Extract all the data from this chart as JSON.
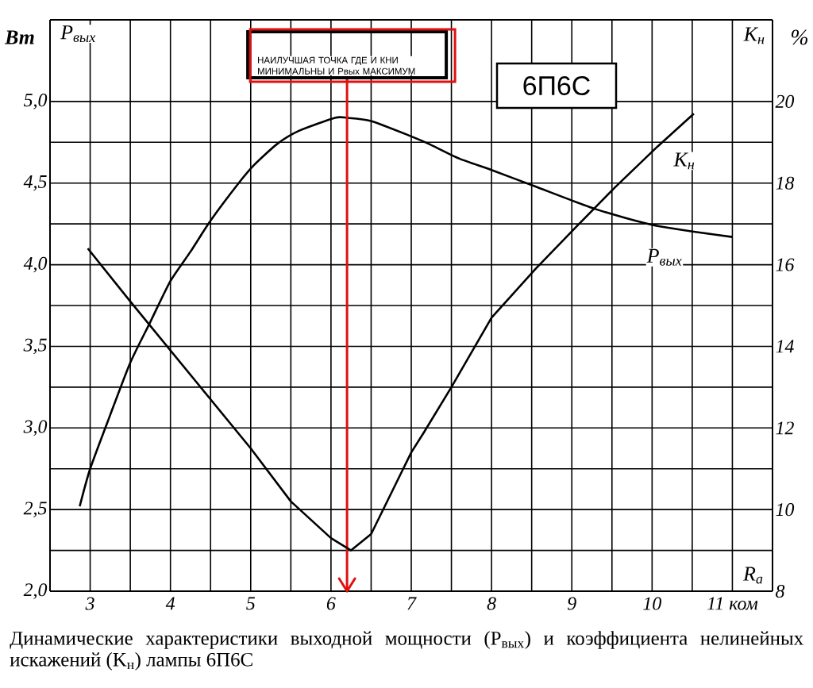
{
  "chart_data": {
    "type": "line",
    "xlabel": "R$_{a}$",
    "ylabel": "Вт",
    "y2label": "%",
    "xlim": [
      2.5,
      11.5
    ],
    "xticks": [
      3,
      4,
      5,
      6,
      7,
      8,
      9,
      10,
      {
        "value": 11,
        "label": "11 ком"
      }
    ],
    "ylim": [
      2,
      5.5
    ],
    "yticks": [
      {
        "value": 2,
        "label": "2,0"
      },
      {
        "value": 2.5,
        "label": "2,5"
      },
      {
        "value": 3,
        "label": "3,0"
      },
      {
        "value": 3.5,
        "label": "3,5"
      },
      {
        "value": 4,
        "label": "4,0"
      },
      {
        "value": 4.5,
        "label": "4,5"
      },
      {
        "value": 5,
        "label": "5,0"
      }
    ],
    "y2lim": [
      8,
      22
    ],
    "y2ticks": [
      8,
      10,
      12,
      14,
      16,
      18,
      20
    ],
    "grid": true,
    "line_style": "solid",
    "marker": "none",
    "series": [
      {
        "name": "P$_{вых}$",
        "color": "#000000",
        "x": [
          2.87,
          3,
          3.25,
          3.5,
          3.75,
          4,
          4.25,
          4.5,
          4.85,
          5.04,
          5.33,
          5.6,
          6.05,
          6.2,
          6.5,
          7.03,
          7.22,
          7.6,
          8.0,
          8.54,
          9.3,
          10.04,
          11.0
        ],
        "values": [
          2.52,
          2.75,
          3.08,
          3.4,
          3.65,
          3.9,
          4.08,
          4.27,
          4.5,
          4.61,
          4.74,
          4.82,
          4.9,
          4.9,
          4.88,
          4.78,
          4.74,
          4.65,
          4.58,
          4.48,
          4.34,
          4.24,
          4.17
        ]
      },
      {
        "name": "K$_{н}$",
        "color": "#000000",
        "axis": "y2",
        "x": [
          2.97,
          3.5,
          4,
          4.5,
          5,
          5.5,
          6,
          6.25,
          6.5,
          7,
          7.16,
          7.5,
          8,
          8.55,
          9.04,
          9.54,
          10.07,
          10.52
        ],
        "values": [
          16.4,
          15.1,
          13.9,
          12.7,
          11.5,
          10.2,
          9.3,
          9.0,
          9.4,
          11.4,
          11.9,
          13.0,
          14.7,
          15.9,
          16.9,
          17.9,
          18.9,
          19.7
        ]
      }
    ],
    "ref_lines": [
      {
        "axis": "x",
        "value": 6.2,
        "color": "#e01010",
        "label": "НАИЛУЧШАЯ ТОЧКА  ГДЕ  И  КНИ МИНИМАЛЬНЫ И Рвых  МАКСИМУМ"
      }
    ],
    "annotations": [
      "P$_{вых}$",
      "K$_{н}$",
      "6П6С",
      "Динамические характеристики выходной мощности (P$_{вых}$) и коэффициента нелинейных искажений (K$_{н}$) лампы 6П6С"
    ]
  }
}
